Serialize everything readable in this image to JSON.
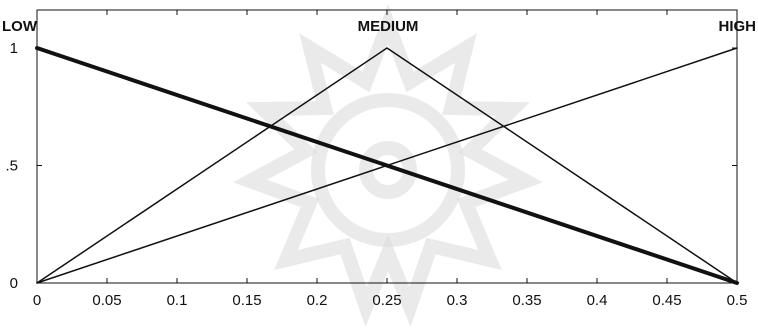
{
  "chart_data": {
    "type": "line",
    "title": "",
    "xlabel": "",
    "ylabel": "",
    "xlim": [
      0,
      0.5
    ],
    "ylim": [
      0,
      1
    ],
    "grid": false,
    "x_ticks": [
      0,
      0.05,
      0.1,
      0.15,
      0.2,
      0.25,
      0.3,
      0.35,
      0.4,
      0.45,
      0.5
    ],
    "x_tick_labels": [
      "0",
      "0.05",
      "0.1",
      "0.15",
      "0.2",
      "0.25",
      "0.3",
      "0.35",
      "0.4",
      "0.45",
      "0.5"
    ],
    "y_ticks": [
      0,
      0.5,
      1
    ],
    "y_tick_labels": [
      "0",
      ".5",
      "1"
    ],
    "series": [
      {
        "name": "LOW",
        "x": [
          0,
          0.5
        ],
        "values": [
          1,
          0
        ],
        "color": "#111111",
        "emphasis": "bold"
      },
      {
        "name": "MEDIUM",
        "x": [
          0,
          0.25,
          0.5
        ],
        "values": [
          0,
          1,
          0
        ],
        "color": "#111111",
        "emphasis": "normal"
      },
      {
        "name": "HIGH",
        "x": [
          0,
          0.5
        ],
        "values": [
          0,
          1
        ],
        "color": "#111111",
        "emphasis": "normal"
      }
    ],
    "membership_labels": [
      "LOW",
      "MEDIUM",
      "HIGH"
    ]
  }
}
